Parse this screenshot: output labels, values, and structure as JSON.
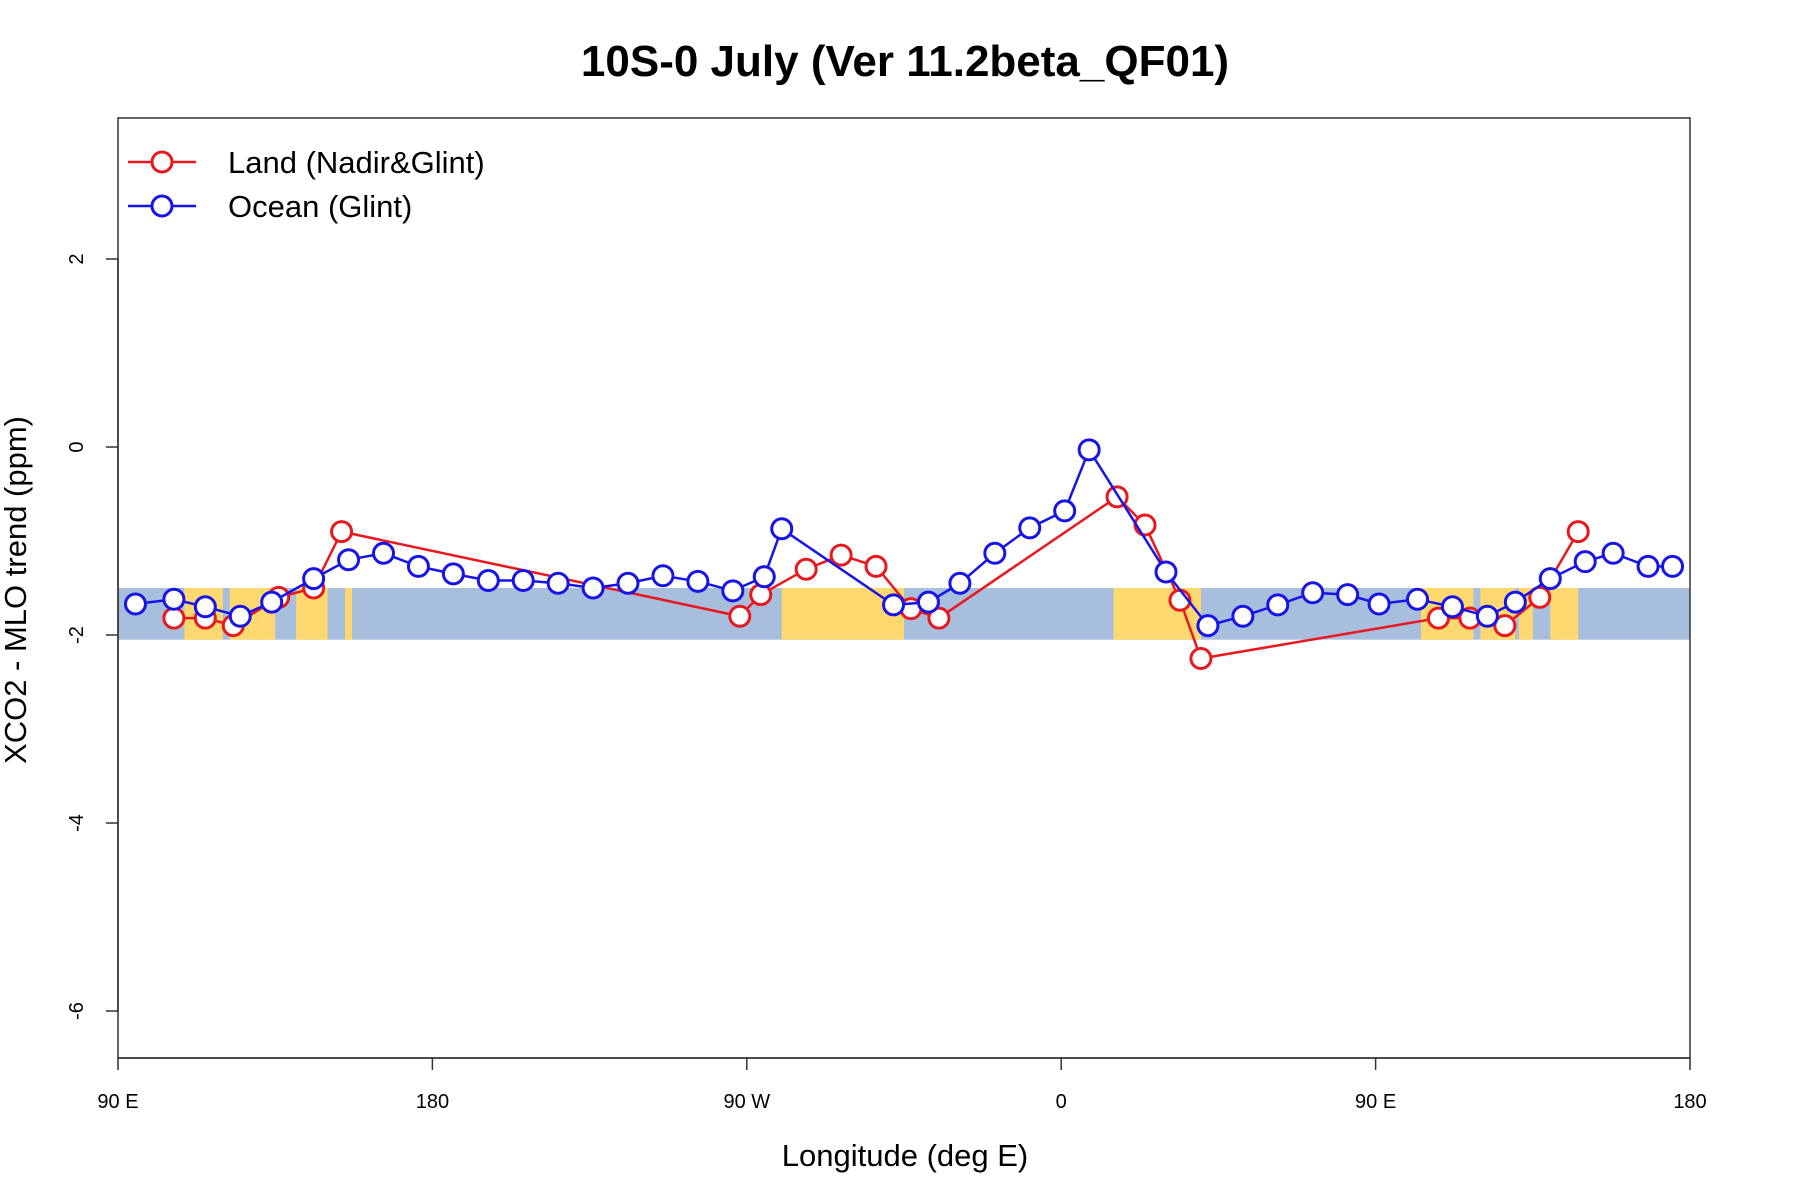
{
  "chart_data": {
    "type": "line",
    "title": "10S-0 July (Ver 11.2beta_QF01)",
    "xlabel": "Longitude (deg E)",
    "ylabel": "XCO2 - MLO trend (ppm)",
    "xlim": [
      90,
      540
    ],
    "ylim": [
      -6.5,
      3.5
    ],
    "x_ticks": [
      {
        "value": 90,
        "label": "90 E"
      },
      {
        "value": 180,
        "label": "180"
      },
      {
        "value": 270,
        "label": "90 W"
      },
      {
        "value": 360,
        "label": "0"
      },
      {
        "value": 450,
        "label": "90 E"
      },
      {
        "value": 540,
        "label": "180"
      }
    ],
    "y_ticks": [
      {
        "value": 2,
        "label": "2"
      },
      {
        "value": 0,
        "label": "0"
      },
      {
        "value": -2,
        "label": "-2"
      },
      {
        "value": -4,
        "label": "-4"
      },
      {
        "value": -6,
        "label": "-6"
      }
    ],
    "map_band": {
      "ymin": -2.05,
      "ymax": -1.5,
      "ocean_color": "#a8bedd",
      "land_color": "#ffd870"
    },
    "land_ranges": [
      [
        109,
        112
      ],
      [
        112,
        120
      ],
      [
        122,
        130
      ],
      [
        130,
        135
      ],
      [
        141,
        150
      ],
      [
        155,
        157
      ],
      [
        280,
        315
      ],
      [
        375,
        400
      ],
      [
        463,
        468
      ],
      [
        468,
        478
      ],
      [
        480,
        490
      ],
      [
        491,
        495
      ],
      [
        500,
        508
      ]
    ],
    "legend_position": "top-left",
    "grid": false,
    "series": [
      {
        "name": "Land (Nadir&Glint)",
        "color": "#e8191e",
        "x": [
          106,
          115,
          123,
          136,
          146,
          154,
          268,
          274,
          287,
          297,
          307,
          317,
          325,
          376,
          384,
          394,
          400,
          468,
          477,
          487,
          497,
          508
        ],
        "y": [
          -1.82,
          -1.82,
          -1.9,
          -1.6,
          -1.5,
          -0.9,
          -1.8,
          -1.57,
          -1.3,
          -1.15,
          -1.27,
          -1.72,
          -1.82,
          -0.53,
          -0.83,
          -1.63,
          -2.25,
          -1.82,
          -1.82,
          -1.9,
          -1.6,
          -0.9
        ]
      },
      {
        "name": "Ocean (Glint)",
        "color": "#1614e8",
        "x": [
          95,
          106,
          115,
          125,
          134,
          146,
          156,
          166,
          176,
          186,
          196,
          206,
          216,
          226,
          236,
          246,
          256,
          266,
          275,
          280,
          312,
          322,
          331,
          341,
          351,
          361,
          368,
          390,
          402,
          412,
          422,
          432,
          442,
          451,
          462,
          472,
          482,
          490,
          500,
          510,
          518,
          528,
          535
        ],
        "y": [
          -1.67,
          -1.62,
          -1.7,
          -1.8,
          -1.65,
          -1.4,
          -1.2,
          -1.13,
          -1.27,
          -1.35,
          -1.42,
          -1.42,
          -1.45,
          -1.5,
          -1.45,
          -1.37,
          -1.43,
          -1.53,
          -1.38,
          -0.87,
          -1.68,
          -1.65,
          -1.45,
          -1.13,
          -0.86,
          -0.68,
          -0.03,
          -1.33,
          -1.9,
          -1.8,
          -1.68,
          -1.55,
          -1.57,
          -1.67,
          -1.62,
          -1.7,
          -1.8,
          -1.65,
          -1.4,
          -1.22,
          -1.13,
          -1.27,
          -1.27
        ]
      }
    ]
  }
}
